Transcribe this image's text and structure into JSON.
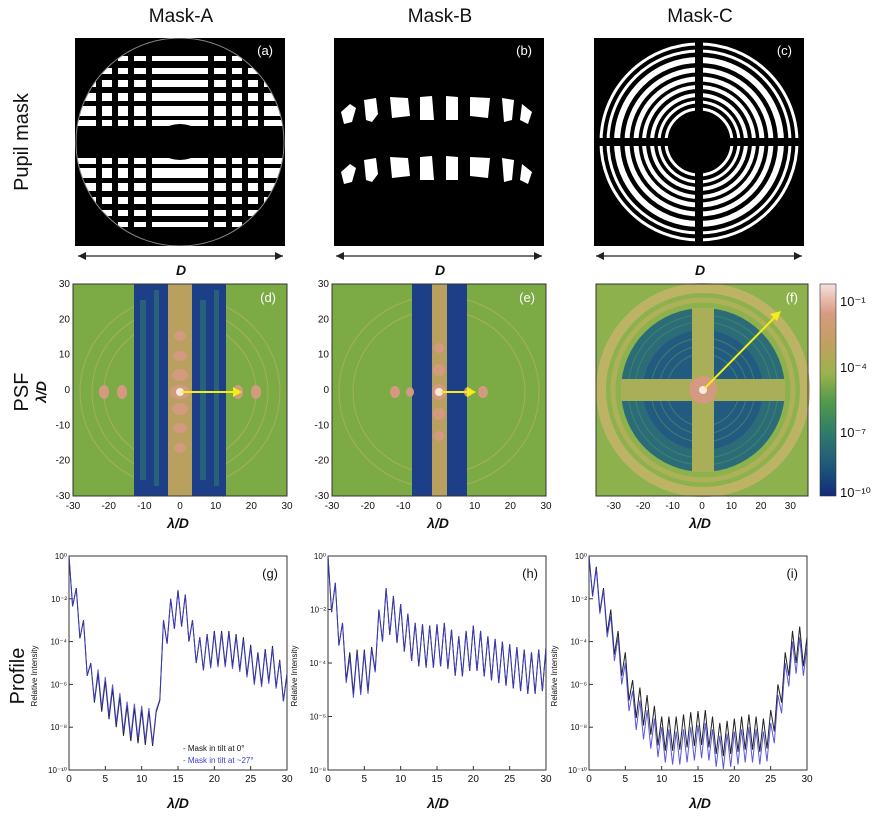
{
  "columns": [
    "Mask-A",
    "Mask-B",
    "Mask-C"
  ],
  "rows": [
    "Pupil mask",
    "PSF",
    "Profile"
  ],
  "panel_labels": [
    "(a)",
    "(b)",
    "(c)",
    "(d)",
    "(e)",
    "(f)",
    "(g)",
    "(h)",
    "(i)"
  ],
  "pupil_dimension_label": "D",
  "psf_axis_label": "λ/D",
  "psf_ab_ticks": [
    "-30",
    "-20",
    "-10",
    "0",
    "10",
    "20",
    "30"
  ],
  "psf_c_ticks": [
    "-30",
    "-20",
    "-10",
    "0",
    "10",
    "20",
    "30"
  ],
  "colorbar": {
    "ticks": [
      "10⁻¹",
      "10⁻⁴",
      "10⁻⁷",
      "10⁻¹⁰"
    ],
    "colors": [
      "#f5e0dc",
      "#d89a80",
      "#c0a060",
      "#9cb24f",
      "#4f9a4a",
      "#2f7c6a",
      "#1f5a7a",
      "#122a7a"
    ]
  },
  "profile": {
    "x_label": "λ/D",
    "y_label": "Relative Intensity",
    "x_ticks": [
      "0",
      "5",
      "10",
      "15",
      "20",
      "25",
      "30"
    ],
    "y_ticks_gi": [
      "10⁰",
      "10⁻²",
      "10⁻⁴",
      "10⁻⁶",
      "10⁻⁸",
      "10⁻¹⁰"
    ],
    "y_ticks_h": [
      "10⁰",
      "10⁻²",
      "10⁻⁴",
      "10⁻⁶",
      "10⁻⁸"
    ],
    "legend": [
      "- Mask in tilt at 0°",
      "- Mask in tilt at ~27°"
    ],
    "series_colors": [
      "#222222",
      "#3b3bd6"
    ]
  },
  "chart_data": [
    {
      "type": "line",
      "title": "(g)",
      "xlabel": "λ/D",
      "ylabel": "Relative Intensity",
      "xlim": [
        0,
        30
      ],
      "ylim_log10": [
        -10,
        0
      ],
      "series": [
        {
          "name": "Mask in tilt at 0°",
          "x": [
            0,
            1,
            2,
            3,
            4,
            6,
            8,
            10,
            12,
            13,
            14,
            15,
            16,
            17,
            18,
            20,
            22,
            24,
            26,
            28,
            30
          ],
          "y_log10": [
            0,
            -1.5,
            -3,
            -5,
            -5.5,
            -6.2,
            -7,
            -7.2,
            -7.3,
            -3,
            -2,
            -1.6,
            -1.8,
            -3,
            -3.8,
            -3.5,
            -3.5,
            -3.8,
            -4.5,
            -4.2,
            -5.5
          ]
        },
        {
          "name": "Mask in tilt at ~27°",
          "x": [
            0,
            1,
            2,
            3,
            4,
            6,
            8,
            10,
            12,
            13,
            14,
            15,
            16,
            17,
            18,
            20,
            22,
            24,
            26,
            28,
            30
          ],
          "y_log10": [
            0,
            -1.5,
            -3,
            -5,
            -5.3,
            -6,
            -6.8,
            -7,
            -7.2,
            -3,
            -2,
            -1.6,
            -1.8,
            -3,
            -3.8,
            -3.6,
            -3.6,
            -3.9,
            -4.6,
            -4.3,
            -5.5
          ]
        }
      ]
    },
    {
      "type": "line",
      "title": "(h)",
      "xlabel": "λ/D",
      "ylabel": "Relative Intensity",
      "xlim": [
        0,
        30
      ],
      "ylim_log10": [
        -8,
        0
      ],
      "series": [
        {
          "name": "Mask in tilt at 0°",
          "x": [
            0,
            1,
            2,
            3,
            4,
            5,
            6,
            7,
            8,
            10,
            12,
            14,
            16,
            18,
            20,
            22,
            24,
            26,
            28,
            30
          ],
          "y_log10": [
            0,
            -1,
            -2.5,
            -3.6,
            -3.5,
            -3.5,
            -3.4,
            -2,
            -1.2,
            -1.8,
            -2.5,
            -2.6,
            -2.5,
            -3,
            -2.6,
            -3,
            -3.2,
            -3.4,
            -3.6,
            -3.4
          ]
        },
        {
          "name": "Mask in tilt at ~27°",
          "x": [
            0,
            1,
            2,
            3,
            4,
            5,
            6,
            7,
            8,
            10,
            12,
            14,
            16,
            18,
            20,
            22,
            24,
            26,
            28,
            30
          ],
          "y_log10": [
            0,
            -1,
            -2.5,
            -3.8,
            -3.6,
            -3.6,
            -3.5,
            -2,
            -1.2,
            -1.8,
            -2.5,
            -2.6,
            -2.5,
            -3,
            -2.6,
            -3,
            -3.2,
            -3.4,
            -3.6,
            -3.4
          ]
        }
      ]
    },
    {
      "type": "line",
      "title": "(i)",
      "xlabel": "λ/D",
      "ylabel": "Relative Intensity",
      "xlim": [
        0,
        30
      ],
      "ylim_log10": [
        -10,
        0
      ],
      "series": [
        {
          "name": "Mask in tilt at 0°",
          "x": [
            0,
            1,
            2,
            3,
            4,
            5,
            6,
            8,
            10,
            12,
            14,
            16,
            18,
            20,
            22,
            24,
            25,
            26,
            27,
            28,
            29,
            30
          ],
          "y_log10": [
            0,
            -0.5,
            -1.5,
            -2.5,
            -3.5,
            -4.5,
            -5.8,
            -6.5,
            -7.5,
            -7.5,
            -7.3,
            -7.2,
            -7.8,
            -7.6,
            -7.4,
            -7.6,
            -7.2,
            -6,
            -4.5,
            -3.5,
            -3.3,
            -3.8
          ]
        },
        {
          "name": "Mask in tilt at ~27°",
          "x": [
            0,
            1,
            2,
            3,
            4,
            5,
            6,
            8,
            10,
            12,
            14,
            16,
            18,
            20,
            22,
            24,
            25,
            26,
            27,
            28,
            29,
            30
          ],
          "y_log10": [
            0,
            -0.6,
            -1.6,
            -2.8,
            -3.8,
            -5,
            -6.3,
            -7.2,
            -8,
            -8.2,
            -8,
            -7.8,
            -8.4,
            -8.2,
            -8,
            -8.2,
            -7.8,
            -6.5,
            -5,
            -4,
            -3.8,
            -4.2
          ]
        }
      ]
    }
  ]
}
